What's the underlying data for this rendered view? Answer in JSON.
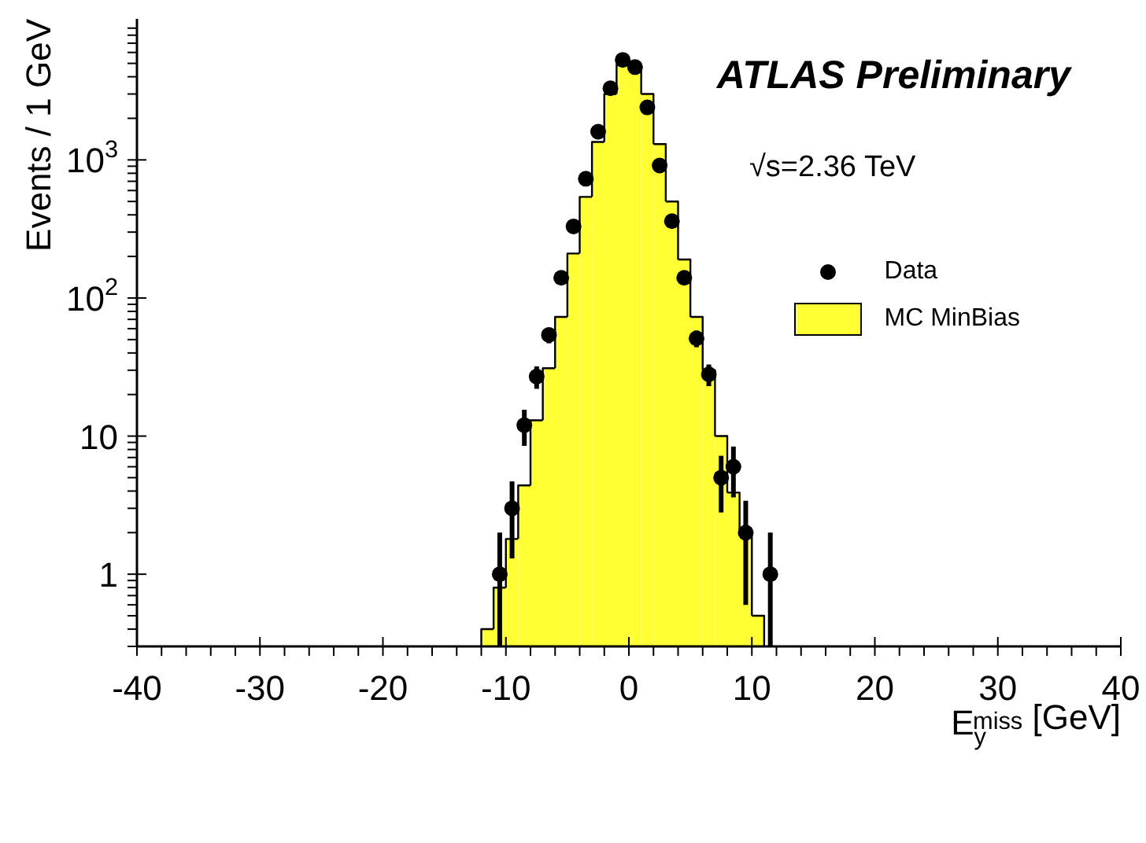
{
  "chart_data": {
    "type": "histogram",
    "xlabel": "E$_{y}$$^{miss}$ [GeV]",
    "ylabel": "Events / 1 GeV",
    "annotations": [
      "ATLAS Preliminary",
      "√s=2.36 TeV"
    ],
    "series": [
      {
        "type": "scatter",
        "name": "Data",
        "color": "#000000",
        "marker": "circle",
        "x": [
          -10.5,
          -9.5,
          -8.5,
          -7.5,
          -6.5,
          -5.5,
          -4.5,
          -3.5,
          -2.5,
          -1.5,
          -0.5,
          0.5,
          1.5,
          2.5,
          3.5,
          4.5,
          5.5,
          6.5,
          7.5,
          8.5,
          9.5,
          11.5
        ],
        "values": [
          1,
          3,
          12,
          27,
          54,
          140,
          330,
          730,
          1600,
          3300,
          5300,
          4700,
          2400,
          910,
          360,
          140,
          51,
          28,
          5,
          6,
          2,
          1
        ],
        "errors": [
          [
            0.3,
            2
          ],
          [
            1.3,
            4.7
          ],
          [
            8.5,
            15.5
          ],
          [
            22,
            32
          ],
          [
            47,
            61
          ],
          null,
          null,
          null,
          null,
          null,
          null,
          null,
          null,
          null,
          null,
          null,
          [
            44,
            58
          ],
          [
            23,
            33
          ],
          [
            2.8,
            7.2
          ],
          [
            3.6,
            8.4
          ],
          [
            0.6,
            3.4
          ],
          [
            0.3,
            2
          ]
        ]
      },
      {
        "type": "histogram",
        "name": "MC MinBias",
        "color": "#ffff33",
        "bins": [
          -12,
          -11,
          -10,
          -9,
          -8,
          -7,
          -6,
          -5,
          -4,
          -3,
          -2,
          -1,
          0,
          1,
          2,
          3,
          4,
          5,
          6,
          7,
          8,
          9,
          10,
          11
        ],
        "values": [
          0.4,
          0.8,
          1.8,
          4.4,
          13,
          31,
          73,
          210,
          540,
          1350,
          3000,
          4900,
          4900,
          3000,
          1300,
          500,
          190,
          73,
          30,
          10,
          3.9,
          1.9,
          0.5
        ]
      }
    ],
    "log": "y",
    "legend": "top right",
    "xlim": [
      -40,
      40
    ],
    "xticks": [
      -40,
      {
        "value": -38,
        "label": null
      },
      {
        "value": -36,
        "label": null
      },
      {
        "value": -34,
        "label": null
      },
      {
        "value": -32,
        "label": null
      },
      -30,
      {
        "value": -28,
        "label": null
      },
      {
        "value": -26,
        "label": null
      },
      {
        "value": -24,
        "label": null
      },
      {
        "value": -22,
        "label": null
      },
      -20,
      {
        "value": -18,
        "label": null
      },
      {
        "value": -16,
        "label": null
      },
      {
        "value": -14,
        "label": null
      },
      {
        "value": -12,
        "label": null
      },
      -10,
      {
        "value": -8,
        "label": null
      },
      {
        "value": -6,
        "label": null
      },
      {
        "value": -4,
        "label": null
      },
      {
        "value": -2,
        "label": null
      },
      0,
      {
        "value": 2,
        "label": null
      },
      {
        "value": 4,
        "label": null
      },
      {
        "value": 6,
        "label": null
      },
      {
        "value": 8,
        "label": null
      },
      10,
      {
        "value": 12,
        "label": null
      },
      {
        "value": 14,
        "label": null
      },
      {
        "value": 16,
        "label": null
      },
      {
        "value": 18,
        "label": null
      },
      20,
      {
        "value": 22,
        "label": null
      },
      {
        "value": 24,
        "label": null
      },
      {
        "value": 26,
        "label": null
      },
      {
        "value": 28,
        "label": null
      },
      30,
      {
        "value": 32,
        "label": null
      },
      {
        "value": 34,
        "label": null
      },
      {
        "value": 36,
        "label": null
      },
      {
        "value": 38,
        "label": null
      },
      40
    ],
    "ylim": [
      0.3,
      10500
    ],
    "yticks": [
      {
        "value": 0.3,
        "label": null
      },
      {
        "value": 0.4,
        "label": null
      },
      {
        "value": 0.5,
        "label": null
      },
      {
        "value": 0.6,
        "label": null
      },
      {
        "value": 0.7,
        "label": null
      },
      {
        "value": 0.8,
        "label": null
      },
      {
        "value": 0.9,
        "label": null
      },
      1,
      {
        "value": 2,
        "label": null
      },
      {
        "value": 3,
        "label": null
      },
      {
        "value": 4,
        "label": null
      },
      {
        "value": 5,
        "label": null
      },
      {
        "value": 6,
        "label": null
      },
      {
        "value": 7,
        "label": null
      },
      {
        "value": 8,
        "label": null
      },
      {
        "value": 9,
        "label": null
      },
      10,
      {
        "value": 20,
        "label": null
      },
      {
        "value": 30,
        "label": null
      },
      {
        "value": 40,
        "label": null
      },
      {
        "value": 50,
        "label": null
      },
      {
        "value": 60,
        "label": null
      },
      {
        "value": 70,
        "label": null
      },
      {
        "value": 80,
        "label": null
      },
      {
        "value": 90,
        "label": null
      },
      {
        "value": 100,
        "label": "10$^{2}$"
      },
      {
        "value": 200,
        "label": null
      },
      {
        "value": 300,
        "label": null
      },
      {
        "value": 400,
        "label": null
      },
      {
        "value": 500,
        "label": null
      },
      {
        "value": 600,
        "label": null
      },
      {
        "value": 700,
        "label": null
      },
      {
        "value": 800,
        "label": null
      },
      {
        "value": 900,
        "label": null
      },
      {
        "value": 1000,
        "label": "10$^{3}$"
      },
      {
        "value": 2000,
        "label": null
      },
      {
        "value": 3000,
        "label": null
      },
      {
        "value": 4000,
        "label": null
      },
      {
        "value": 5000,
        "label": null
      },
      {
        "value": 6000,
        "label": null
      },
      {
        "value": 7000,
        "label": null
      },
      {
        "value": 8000,
        "label": null
      },
      {
        "value": 9000,
        "label": null
      }
    ]
  }
}
